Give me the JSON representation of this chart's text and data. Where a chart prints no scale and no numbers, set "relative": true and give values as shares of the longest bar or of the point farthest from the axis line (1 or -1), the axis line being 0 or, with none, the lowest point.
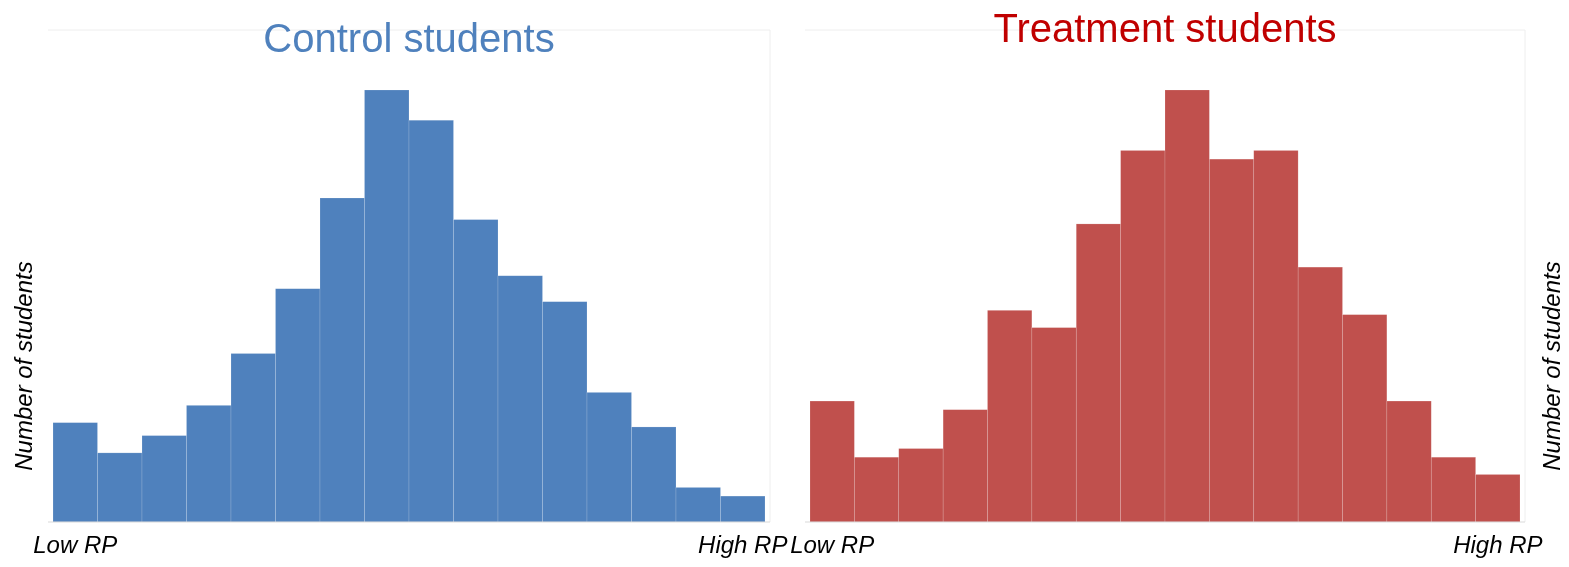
{
  "chart_data": [
    {
      "type": "bar",
      "title": "Control students",
      "ylabel": "Number of students",
      "relative": true,
      "categories": [
        "Low RP",
        null,
        null,
        null,
        null,
        null,
        null,
        null,
        null,
        null,
        null,
        null,
        null,
        null,
        null,
        "High RP"
      ],
      "series": [
        {
          "color": "#4f81bd",
          "values": [
            0.23,
            0.16,
            0.2,
            0.27,
            0.39,
            0.54,
            0.75,
            1,
            0.93,
            0.7,
            0.57,
            0.51,
            0.3,
            0.22,
            0.08,
            0.06
          ]
        }
      ]
    },
    {
      "type": "bar",
      "title": "Treatment students",
      "ylabel": "Number of students",
      "relative": true,
      "categories": [
        "Low RP",
        null,
        null,
        null,
        null,
        null,
        null,
        null,
        null,
        null,
        null,
        null,
        null,
        null,
        null,
        "High RP"
      ],
      "series": [
        {
          "color": "#c0504d",
          "values": [
            0.28,
            0.15,
            0.17,
            0.26,
            0.49,
            0.45,
            0.69,
            0.86,
            1,
            0.84,
            0.86,
            0.59,
            0.48,
            0.28,
            0.15,
            0.11
          ]
        }
      ]
    }
  ]
}
